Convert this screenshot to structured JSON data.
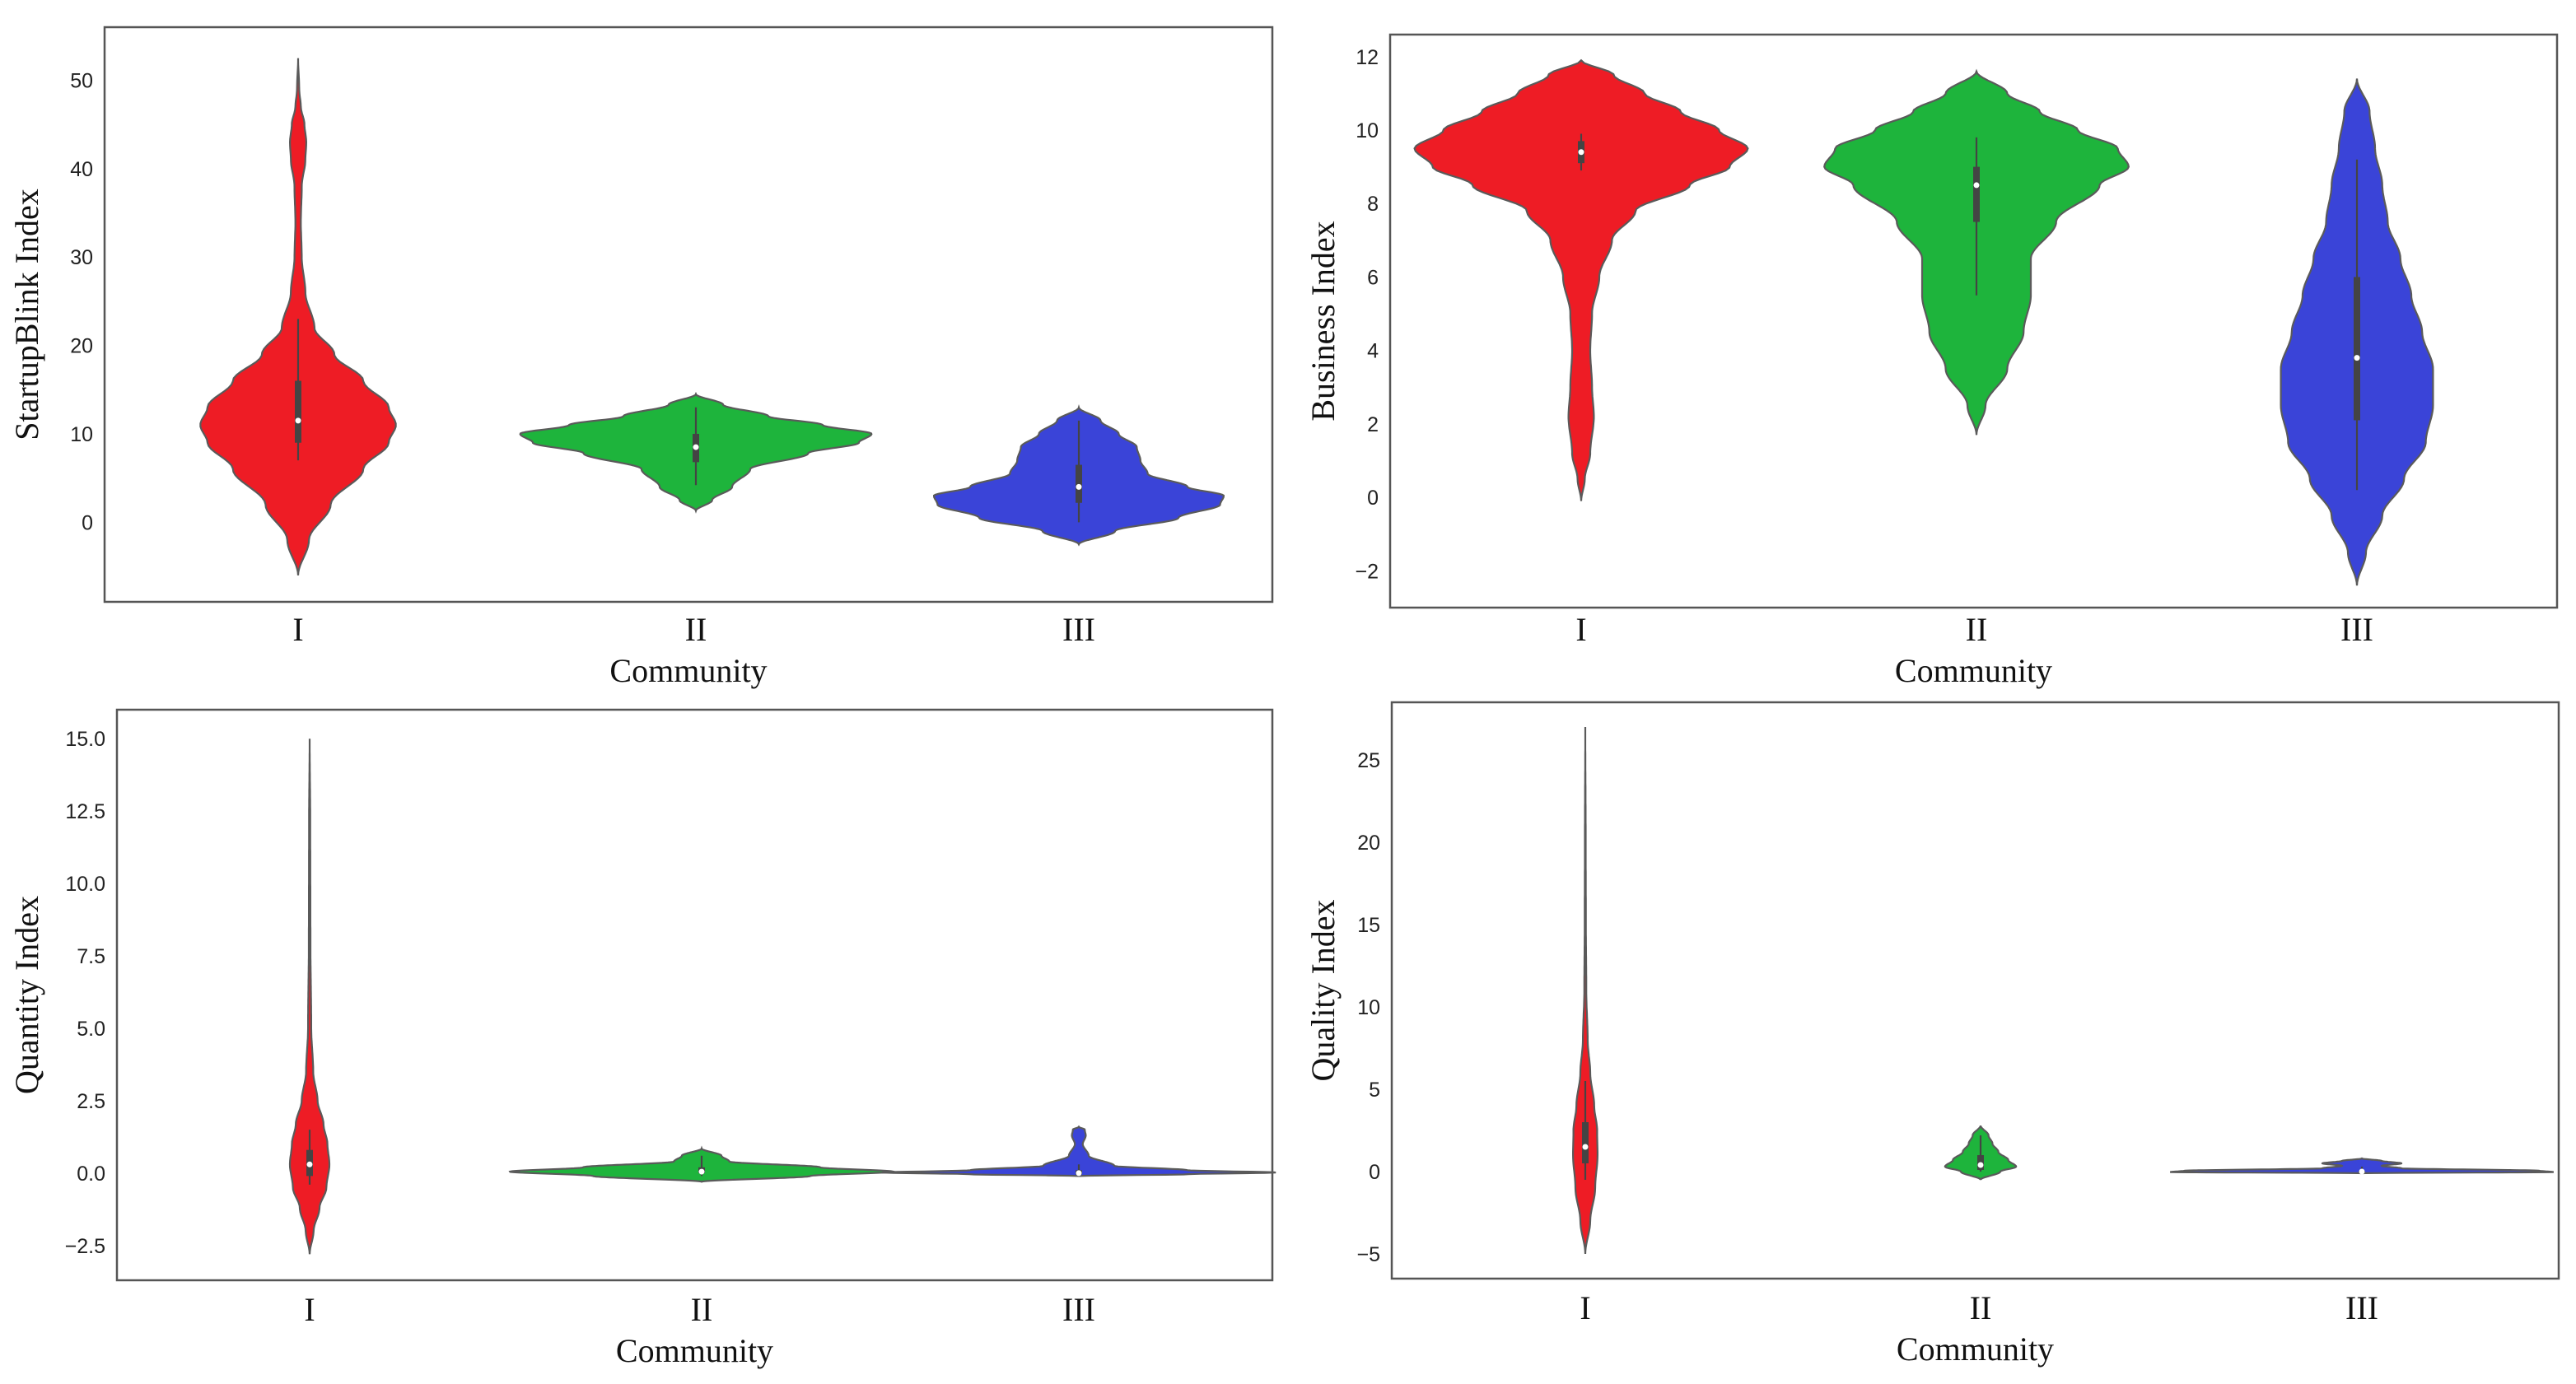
{
  "colors": {
    "I": "#ee1c25",
    "II": "#1eb43c",
    "III": "#3a44d8",
    "outline": "#5a5a5a",
    "box": "#444444"
  },
  "chart_data": [
    {
      "type": "violin",
      "xlabel": "Community",
      "ylabel": "StartupBlink Index",
      "categories": [
        "I",
        "II",
        "III"
      ],
      "ylim": [
        -9,
        56
      ],
      "yticks": [
        0,
        10,
        20,
        30,
        40,
        50
      ],
      "ytick_labels": [
        "0",
        "10",
        "20",
        "30",
        "40",
        "50"
      ],
      "series": [
        {
          "name": "I",
          "median": 11.5,
          "q1": 9,
          "q3": 16,
          "whisker_low": 7,
          "whisker_high": 23,
          "profile": [
            [
              -6,
              0
            ],
            [
              -2,
              0.06
            ],
            [
              2,
              0.18
            ],
            [
              6,
              0.36
            ],
            [
              9,
              0.5
            ],
            [
              11,
              0.54
            ],
            [
              13,
              0.5
            ],
            [
              16,
              0.36
            ],
            [
              19,
              0.2
            ],
            [
              22,
              0.09
            ],
            [
              26,
              0.04
            ],
            [
              30,
              0.02
            ],
            [
              34,
              0.015
            ],
            [
              38,
              0.02
            ],
            [
              41,
              0.04
            ],
            [
              43,
              0.045
            ],
            [
              45,
              0.035
            ],
            [
              47,
              0.015
            ],
            [
              49,
              0.006
            ],
            [
              52.5,
              0
            ]
          ]
        },
        {
          "name": "II",
          "median": 8.5,
          "q1": 6.8,
          "q3": 10,
          "whisker_low": 4.2,
          "whisker_high": 13,
          "profile": [
            [
              1.3,
              0
            ],
            [
              2.5,
              0.09
            ],
            [
              4,
              0.2
            ],
            [
              6,
              0.3
            ],
            [
              7.8,
              0.62
            ],
            [
              9,
              0.9
            ],
            [
              10,
              0.97
            ],
            [
              11,
              0.7
            ],
            [
              12,
              0.4
            ],
            [
              13.3,
              0.15
            ],
            [
              14.5,
              0
            ]
          ]
        },
        {
          "name": "III",
          "median": 4,
          "q1": 2.2,
          "q3": 6.5,
          "whisker_low": 0,
          "whisker_high": 11.5,
          "profile": [
            [
              -2.5,
              0
            ],
            [
              -1,
              0.2
            ],
            [
              0.5,
              0.55
            ],
            [
              2,
              0.78
            ],
            [
              3,
              0.8
            ],
            [
              4,
              0.6
            ],
            [
              5.5,
              0.38
            ],
            [
              7,
              0.34
            ],
            [
              8.5,
              0.32
            ],
            [
              10,
              0.22
            ],
            [
              11.5,
              0.12
            ],
            [
              13,
              0
            ]
          ]
        }
      ]
    },
    {
      "type": "violin",
      "xlabel": "Community",
      "ylabel": "Business Index",
      "categories": [
        "I",
        "II",
        "III"
      ],
      "ylim": [
        -3,
        12.6
      ],
      "yticks": [
        -2,
        0,
        2,
        4,
        6,
        8,
        10,
        12
      ],
      "ytick_labels": [
        "−2",
        "0",
        "2",
        "4",
        "6",
        "8",
        "10",
        "12"
      ],
      "series": [
        {
          "name": "I",
          "median": 9.4,
          "q1": 9.1,
          "q3": 9.7,
          "whisker_low": 8.9,
          "whisker_high": 9.9,
          "profile": [
            [
              -0.1,
              0
            ],
            [
              0.5,
              0.02
            ],
            [
              1.2,
              0.05
            ],
            [
              2.2,
              0.07
            ],
            [
              3,
              0.06
            ],
            [
              4,
              0.05
            ],
            [
              5,
              0.06
            ],
            [
              6,
              0.1
            ],
            [
              7,
              0.17
            ],
            [
              7.8,
              0.3
            ],
            [
              8.5,
              0.6
            ],
            [
              9,
              0.82
            ],
            [
              9.5,
              0.92
            ],
            [
              10,
              0.76
            ],
            [
              10.5,
              0.55
            ],
            [
              11,
              0.35
            ],
            [
              11.5,
              0.18
            ],
            [
              11.9,
              0
            ]
          ]
        },
        {
          "name": "II",
          "median": 8.5,
          "q1": 7.5,
          "q3": 9,
          "whisker_low": 5.5,
          "whisker_high": 9.8,
          "profile": [
            [
              1.7,
              0
            ],
            [
              2.5,
              0.05
            ],
            [
              3.5,
              0.17
            ],
            [
              4.5,
              0.26
            ],
            [
              5.5,
              0.3
            ],
            [
              6.5,
              0.3
            ],
            [
              7.5,
              0.44
            ],
            [
              8.5,
              0.68
            ],
            [
              9,
              0.84
            ],
            [
              9.5,
              0.78
            ],
            [
              10,
              0.56
            ],
            [
              10.5,
              0.35
            ],
            [
              11,
              0.17
            ],
            [
              11.6,
              0
            ]
          ]
        },
        {
          "name": "III",
          "median": 3.8,
          "q1": 2.1,
          "q3": 6,
          "whisker_low": 0.2,
          "whisker_high": 9.2,
          "profile": [
            [
              -2.4,
              0
            ],
            [
              -1.5,
              0.05
            ],
            [
              -0.5,
              0.14
            ],
            [
              0.5,
              0.26
            ],
            [
              1.5,
              0.38
            ],
            [
              2.5,
              0.42
            ],
            [
              3.5,
              0.42
            ],
            [
              4.5,
              0.36
            ],
            [
              5.5,
              0.3
            ],
            [
              6.5,
              0.24
            ],
            [
              7.5,
              0.17
            ],
            [
              8.5,
              0.14
            ],
            [
              9.5,
              0.1
            ],
            [
              10.5,
              0.07
            ],
            [
              11.4,
              0
            ]
          ]
        }
      ]
    },
    {
      "type": "violin",
      "xlabel": "Community",
      "ylabel": "Quantity Index",
      "categories": [
        "I",
        "II",
        "III"
      ],
      "ylim": [
        -3.7,
        16.0
      ],
      "yticks": [
        -2.5,
        0,
        2.5,
        5,
        7.5,
        10,
        12.5,
        15
      ],
      "ytick_labels": [
        "−2.5",
        "0.0",
        "2.5",
        "5.0",
        "7.5",
        "10.0",
        "12.5",
        "15.0"
      ],
      "series": [
        {
          "name": "I",
          "median": 0.3,
          "q1": -0.1,
          "q3": 0.8,
          "whisker_low": -0.4,
          "whisker_high": 1.5,
          "profile": [
            [
              -2.8,
              0
            ],
            [
              -2,
              0.02
            ],
            [
              -1.2,
              0.05
            ],
            [
              -0.5,
              0.085
            ],
            [
              0.3,
              0.1
            ],
            [
              1,
              0.09
            ],
            [
              1.7,
              0.07
            ],
            [
              2.5,
              0.04
            ],
            [
              3.5,
              0.018
            ],
            [
              5,
              0.008
            ],
            [
              8,
              0.004
            ],
            [
              12,
              0.003
            ],
            [
              15,
              0
            ]
          ]
        },
        {
          "name": "II",
          "median": 0.05,
          "q1": 0.0,
          "q3": 0.2,
          "whisker_low": -0.1,
          "whisker_high": 0.6,
          "profile": [
            [
              -0.3,
              0
            ],
            [
              -0.1,
              0.55
            ],
            [
              0.05,
              0.97
            ],
            [
              0.2,
              0.6
            ],
            [
              0.4,
              0.14
            ],
            [
              0.6,
              0.1
            ],
            [
              0.85,
              0
            ]
          ]
        },
        {
          "name": "III",
          "median": 0.0,
          "q1": -0.05,
          "q3": 0.1,
          "whisker_low": -0.1,
          "whisker_high": 0.3,
          "profile": [
            [
              -0.1,
              0
            ],
            [
              -0.04,
              0.55
            ],
            [
              0.02,
              1.0
            ],
            [
              0.1,
              0.55
            ],
            [
              0.25,
              0.18
            ],
            [
              0.6,
              0.05
            ],
            [
              1,
              0.02
            ],
            [
              1.3,
              0.035
            ],
            [
              1.5,
              0.03
            ],
            [
              1.6,
              0
            ]
          ]
        }
      ]
    },
    {
      "type": "violin",
      "xlabel": "Community",
      "ylabel": "Quality Index",
      "categories": [
        "I",
        "II",
        "III"
      ],
      "ylim": [
        -6.5,
        28.5
      ],
      "yticks": [
        -5,
        0,
        5,
        10,
        15,
        20,
        25
      ],
      "ytick_labels": [
        "−5",
        "0",
        "5",
        "10",
        "15",
        "20",
        "25"
      ],
      "series": [
        {
          "name": "I",
          "median": 1.5,
          "q1": 0.5,
          "q3": 3,
          "whisker_low": -0.5,
          "whisker_high": 5.5,
          "profile": [
            [
              -5,
              0
            ],
            [
              -3,
              0.025
            ],
            [
              -1,
              0.05
            ],
            [
              1,
              0.062
            ],
            [
              2.5,
              0.06
            ],
            [
              4,
              0.045
            ],
            [
              6,
              0.025
            ],
            [
              8,
              0.012
            ],
            [
              11,
              0.005
            ],
            [
              15,
              0.003
            ],
            [
              20,
              0.002
            ],
            [
              27,
              0
            ]
          ]
        },
        {
          "name": "II",
          "median": 0.4,
          "q1": 0.1,
          "q3": 1.0,
          "whisker_low": 0,
          "whisker_high": 2.2,
          "profile": [
            [
              -0.5,
              0
            ],
            [
              0,
              0.1
            ],
            [
              0.3,
              0.18
            ],
            [
              0.7,
              0.14
            ],
            [
              1.2,
              0.09
            ],
            [
              1.7,
              0.06
            ],
            [
              2.2,
              0.04
            ],
            [
              2.8,
              0
            ]
          ]
        },
        {
          "name": "III",
          "median": 0.0,
          "q1": -0.02,
          "q3": 0.05,
          "whisker_low": -0.05,
          "whisker_high": 0.3,
          "profile": [
            [
              -0.1,
              0
            ],
            [
              -0.03,
              0.97
            ],
            [
              0.05,
              0.9
            ],
            [
              0.2,
              0.2
            ],
            [
              0.35,
              0.1
            ],
            [
              0.5,
              0.2
            ],
            [
              0.65,
              0.1
            ],
            [
              0.8,
              0
            ]
          ]
        }
      ]
    }
  ]
}
